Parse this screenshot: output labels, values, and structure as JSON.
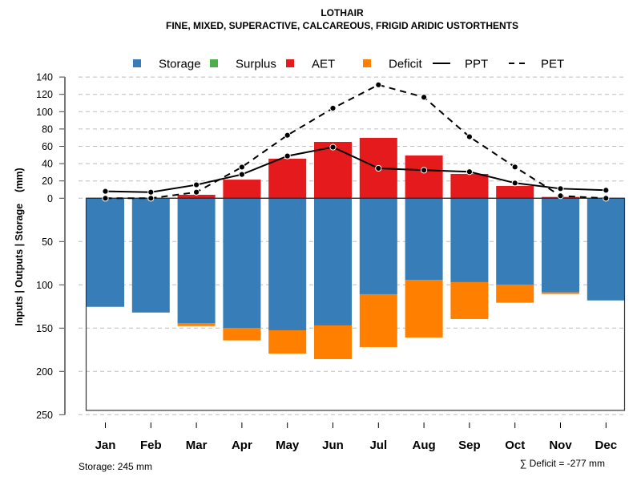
{
  "chart_data": {
    "type": "bar",
    "title": "LOTHAIR",
    "subtitle": "FINE, MIXED, SUPERACTIVE, CALCAREOUS, FRIGID ARIDIC USTORTHENTS",
    "xlabel": "",
    "ylabel": "Inputs | Outputs | Storage    (mm)",
    "categories": [
      "Jan",
      "Feb",
      "Mar",
      "Apr",
      "May",
      "Jun",
      "Jul",
      "Aug",
      "Sep",
      "Oct",
      "Nov",
      "Dec"
    ],
    "ylim": [
      -250,
      140
    ],
    "yticks": [
      140,
      120,
      100,
      80,
      60,
      40,
      20,
      0,
      -50,
      -100,
      -150,
      -200,
      -250
    ],
    "ytick_labels": [
      "140",
      "120",
      "100",
      "80",
      "60",
      "40",
      "20",
      "0",
      "50",
      "100",
      "150",
      "200",
      "250"
    ],
    "grid": true,
    "legend_position": "top",
    "legend": [
      {
        "name": "Storage",
        "kind": "box",
        "color": "#377EB8"
      },
      {
        "name": "Surplus",
        "kind": "box",
        "color": "#4DAF4A"
      },
      {
        "name": "AET",
        "kind": "box",
        "color": "#E41A1C"
      },
      {
        "name": "Deficit",
        "kind": "box",
        "color": "#FF7F00"
      },
      {
        "name": "PPT",
        "kind": "solid-line",
        "color": "#000000"
      },
      {
        "name": "PET",
        "kind": "dashed-line",
        "color": "#000000"
      }
    ],
    "series": [
      {
        "name": "AET",
        "type": "bar",
        "direction": "up",
        "color": "#E41A1C",
        "values": [
          0,
          0,
          4,
          21.5,
          45.7,
          65.1,
          69.8,
          49.4,
          28.1,
          14.2,
          1.5,
          0
        ]
      },
      {
        "name": "Surplus",
        "type": "bar",
        "direction": "up",
        "color": "#4DAF4A",
        "values": [
          0,
          0,
          0,
          0,
          0,
          0,
          0,
          0,
          0,
          0,
          0,
          0
        ]
      },
      {
        "name": "Storage",
        "type": "bar",
        "direction": "down",
        "color": "#377EB8",
        "values": [
          125.4,
          132,
          144.2,
          149.7,
          152.5,
          146.9,
          110.8,
          94.2,
          96.9,
          99.7,
          108.7,
          118
        ]
      },
      {
        "name": "Deficit",
        "type": "bar",
        "direction": "down",
        "stacked_below": "Storage",
        "color": "#FF7F00",
        "values": [
          0,
          0,
          3.4,
          14.5,
          26.9,
          38.9,
          61.1,
          66.6,
          42.6,
          21,
          1.8,
          0
        ]
      },
      {
        "name": "PPT",
        "type": "line",
        "style": "solid",
        "color": "#000000",
        "values": [
          8,
          7,
          15.5,
          27.5,
          48.8,
          59,
          34.6,
          32.4,
          30.6,
          17.6,
          11.1,
          9.3
        ]
      },
      {
        "name": "PET",
        "type": "line",
        "style": "dashed",
        "color": "#000000",
        "values": [
          0,
          0,
          7,
          36,
          72.8,
          104,
          131,
          116.7,
          71,
          36.1,
          2.8,
          0
        ]
      }
    ],
    "storage_capacity": 245,
    "annotations": {
      "storage": "Storage: 245 mm",
      "deficit_total": "∑ Deficit = -277 mm"
    }
  }
}
